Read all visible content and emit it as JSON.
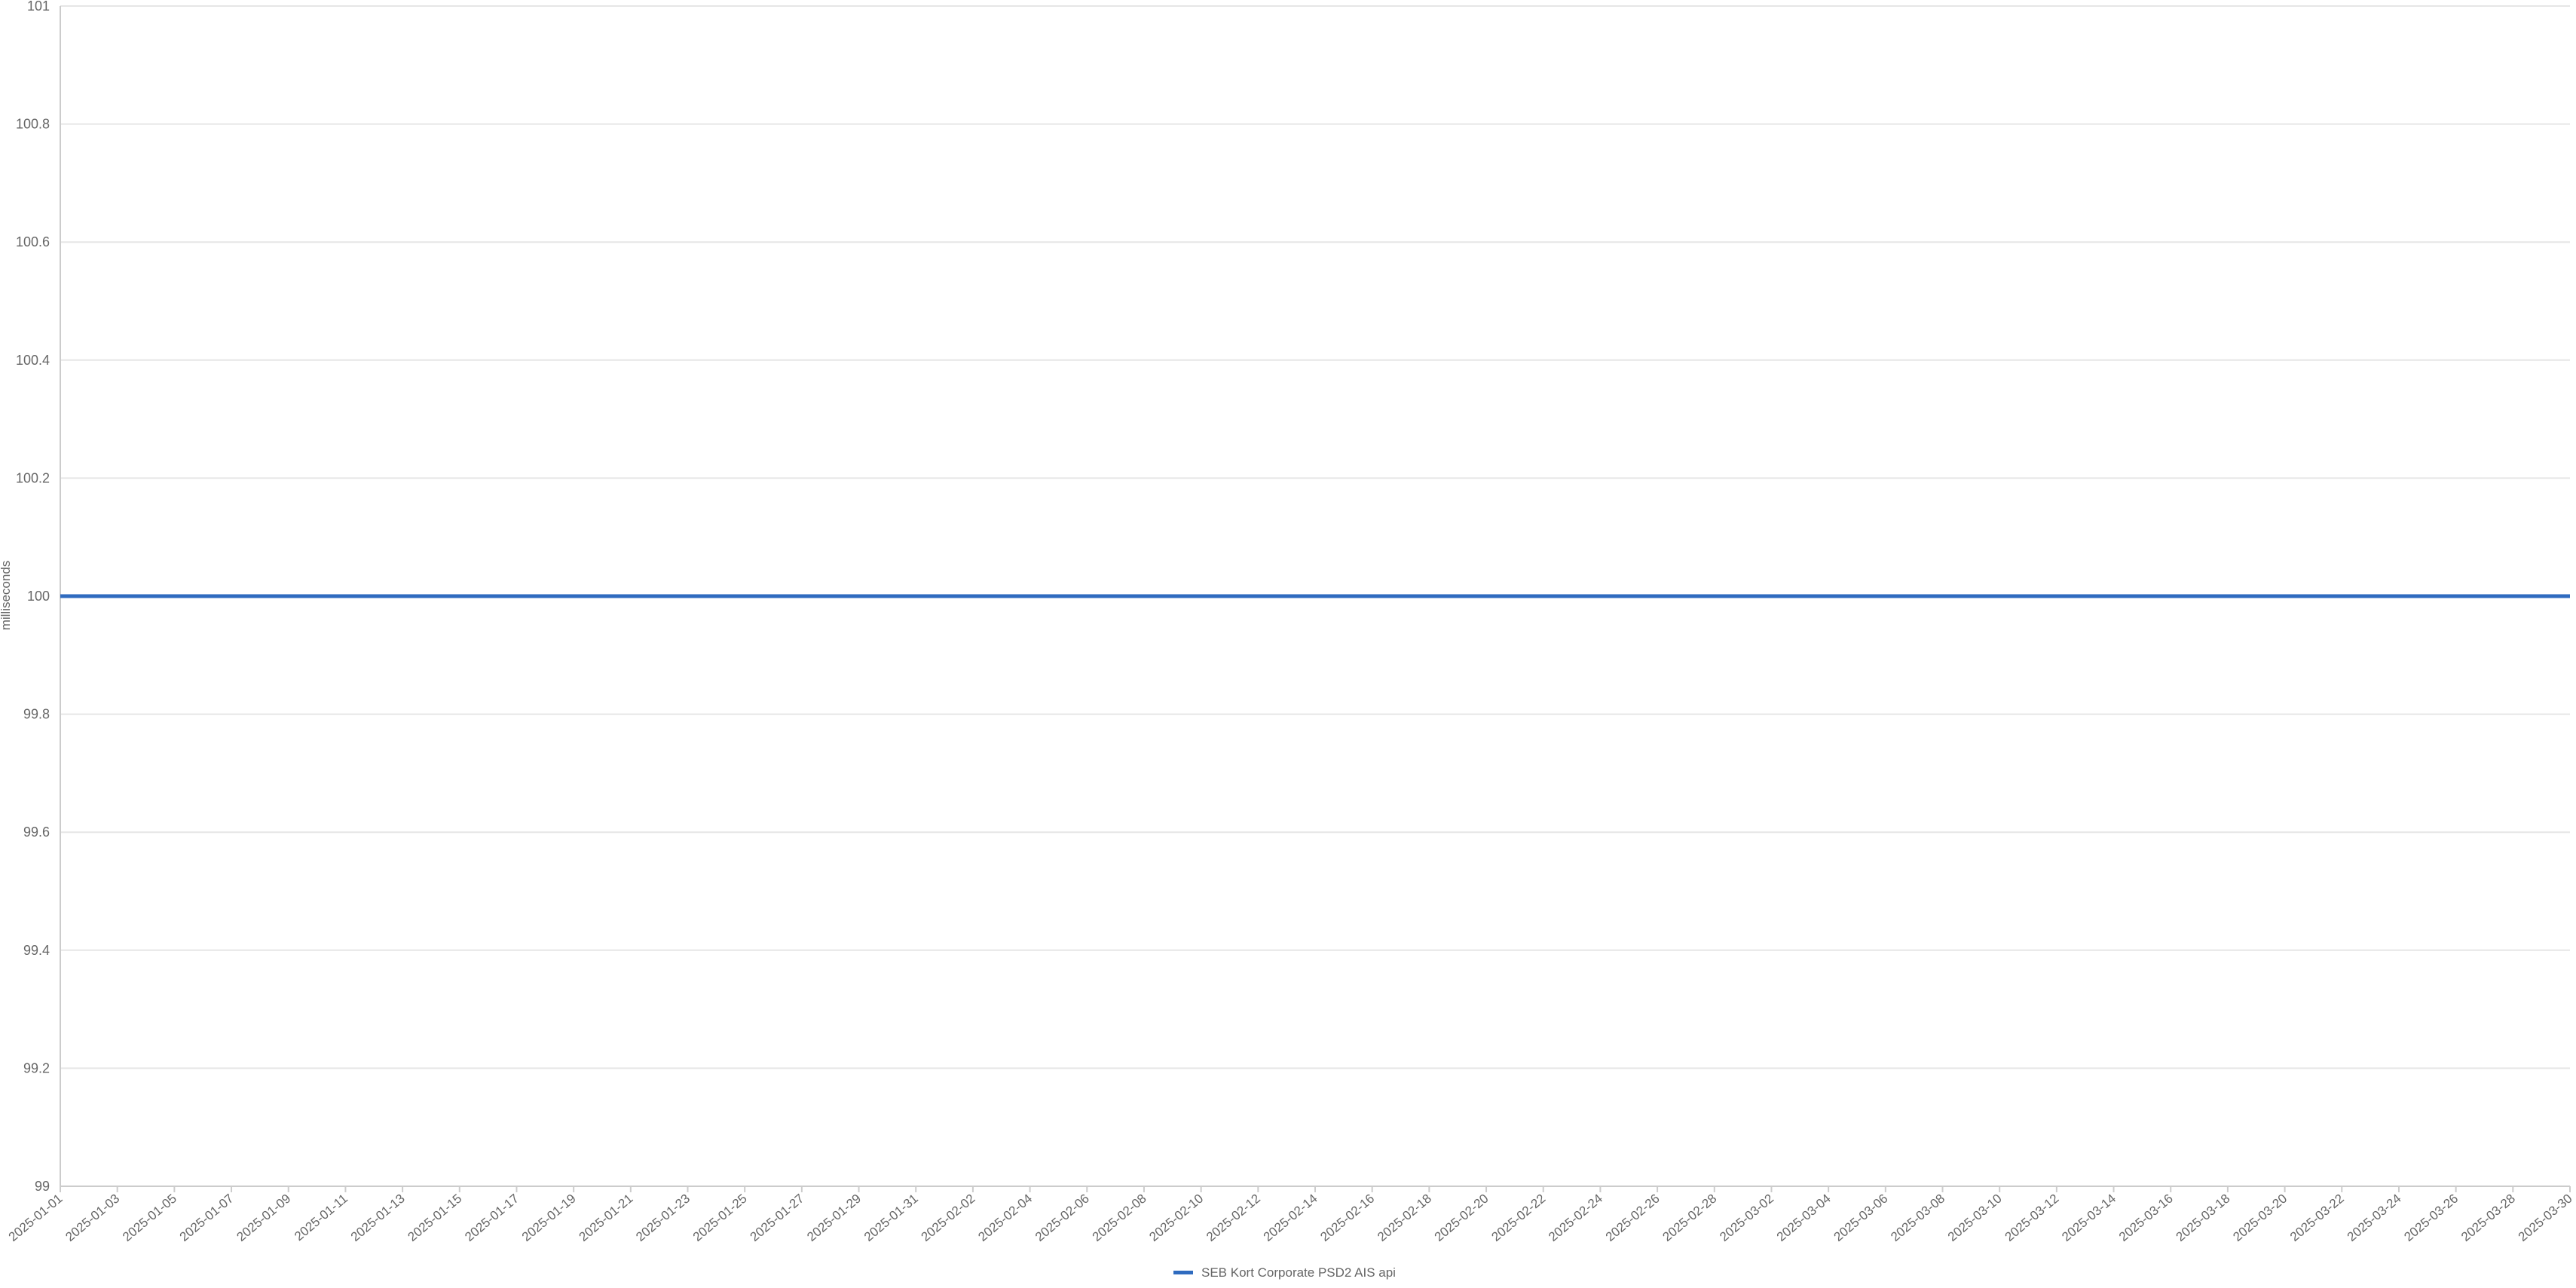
{
  "chart_data": {
    "type": "line",
    "title": "",
    "xlabel": "",
    "ylabel": "milliseconds",
    "ylim": [
      99,
      101
    ],
    "y_ticks": [
      "99",
      "99.2",
      "99.4",
      "99.6",
      "99.8",
      "100",
      "100.2",
      "100.4",
      "100.6",
      "100.8",
      "101"
    ],
    "x_tick_labels": [
      "2025-01-01",
      "2025-01-03",
      "2025-01-05",
      "2025-01-07",
      "2025-01-09",
      "2025-01-11",
      "2025-01-13",
      "2025-01-15",
      "2025-01-17",
      "2025-01-19",
      "2025-01-21",
      "2025-01-23",
      "2025-01-25",
      "2025-01-27",
      "2025-01-29",
      "2025-01-31",
      "2025-02-02",
      "2025-02-04",
      "2025-02-06",
      "2025-02-08",
      "2025-02-10",
      "2025-02-12",
      "2025-02-14",
      "2025-02-16",
      "2025-02-18",
      "2025-02-20",
      "2025-02-22",
      "2025-02-24",
      "2025-02-26",
      "2025-02-28",
      "2025-03-02",
      "2025-03-04",
      "2025-03-06",
      "2025-03-08",
      "2025-03-10",
      "2025-03-12",
      "2025-03-14",
      "2025-03-16",
      "2025-03-18",
      "2025-03-20",
      "2025-03-22",
      "2025-03-24",
      "2025-03-26",
      "2025-03-28",
      "2025-03-30"
    ],
    "x_start": "2025-01-01",
    "x_end": "2025-03-30",
    "grid": true,
    "legend_position": "bottom",
    "series": [
      {
        "name": "SEB Kort Corporate PSD2 AIS api",
        "color": "#2f6bbf",
        "constant_value": 100
      }
    ]
  }
}
